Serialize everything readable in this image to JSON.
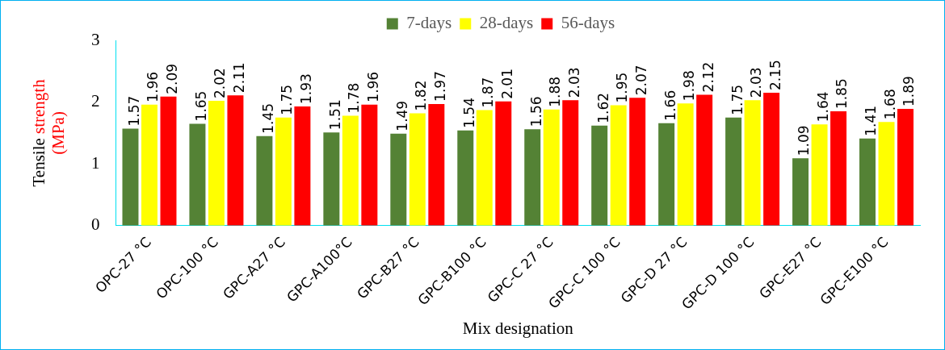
{
  "chart_data": {
    "type": "bar",
    "xlabel": "Mix designation",
    "ylabel": "Tensile strength (MPa)",
    "categories": [
      "OPC-27 °C",
      "OPC-100 °C",
      "GPC-A27 °C",
      "GPC-A100°C",
      "GPC-B27 °C",
      "GPC-B100 °C",
      "GPC-C 27 °C",
      "GPC-C 100 °C",
      "GPC-D 27 °C",
      "GPC-D 100 °C",
      "GPC-E27 °C",
      "GPC-E100 °C"
    ],
    "series": [
      {
        "name": "7-days",
        "color": "#548235",
        "values": [
          1.57,
          1.65,
          1.45,
          1.51,
          1.49,
          1.54,
          1.56,
          1.62,
          1.66,
          1.75,
          1.09,
          1.41
        ]
      },
      {
        "name": "28-days",
        "color": "#ffff00",
        "values": [
          1.96,
          2.02,
          1.75,
          1.78,
          1.82,
          1.87,
          1.88,
          1.95,
          1.98,
          2.03,
          1.64,
          1.68
        ]
      },
      {
        "name": "56-days",
        "color": "#ff0000",
        "values": [
          2.09,
          2.11,
          1.93,
          1.96,
          1.97,
          2.01,
          2.03,
          2.07,
          2.12,
          2.15,
          1.85,
          1.89
        ]
      }
    ],
    "ylim": [
      0,
      3
    ],
    "yticks": [
      0,
      1,
      2,
      3
    ],
    "grid": false,
    "legend": "top",
    "data_labels": true
  }
}
